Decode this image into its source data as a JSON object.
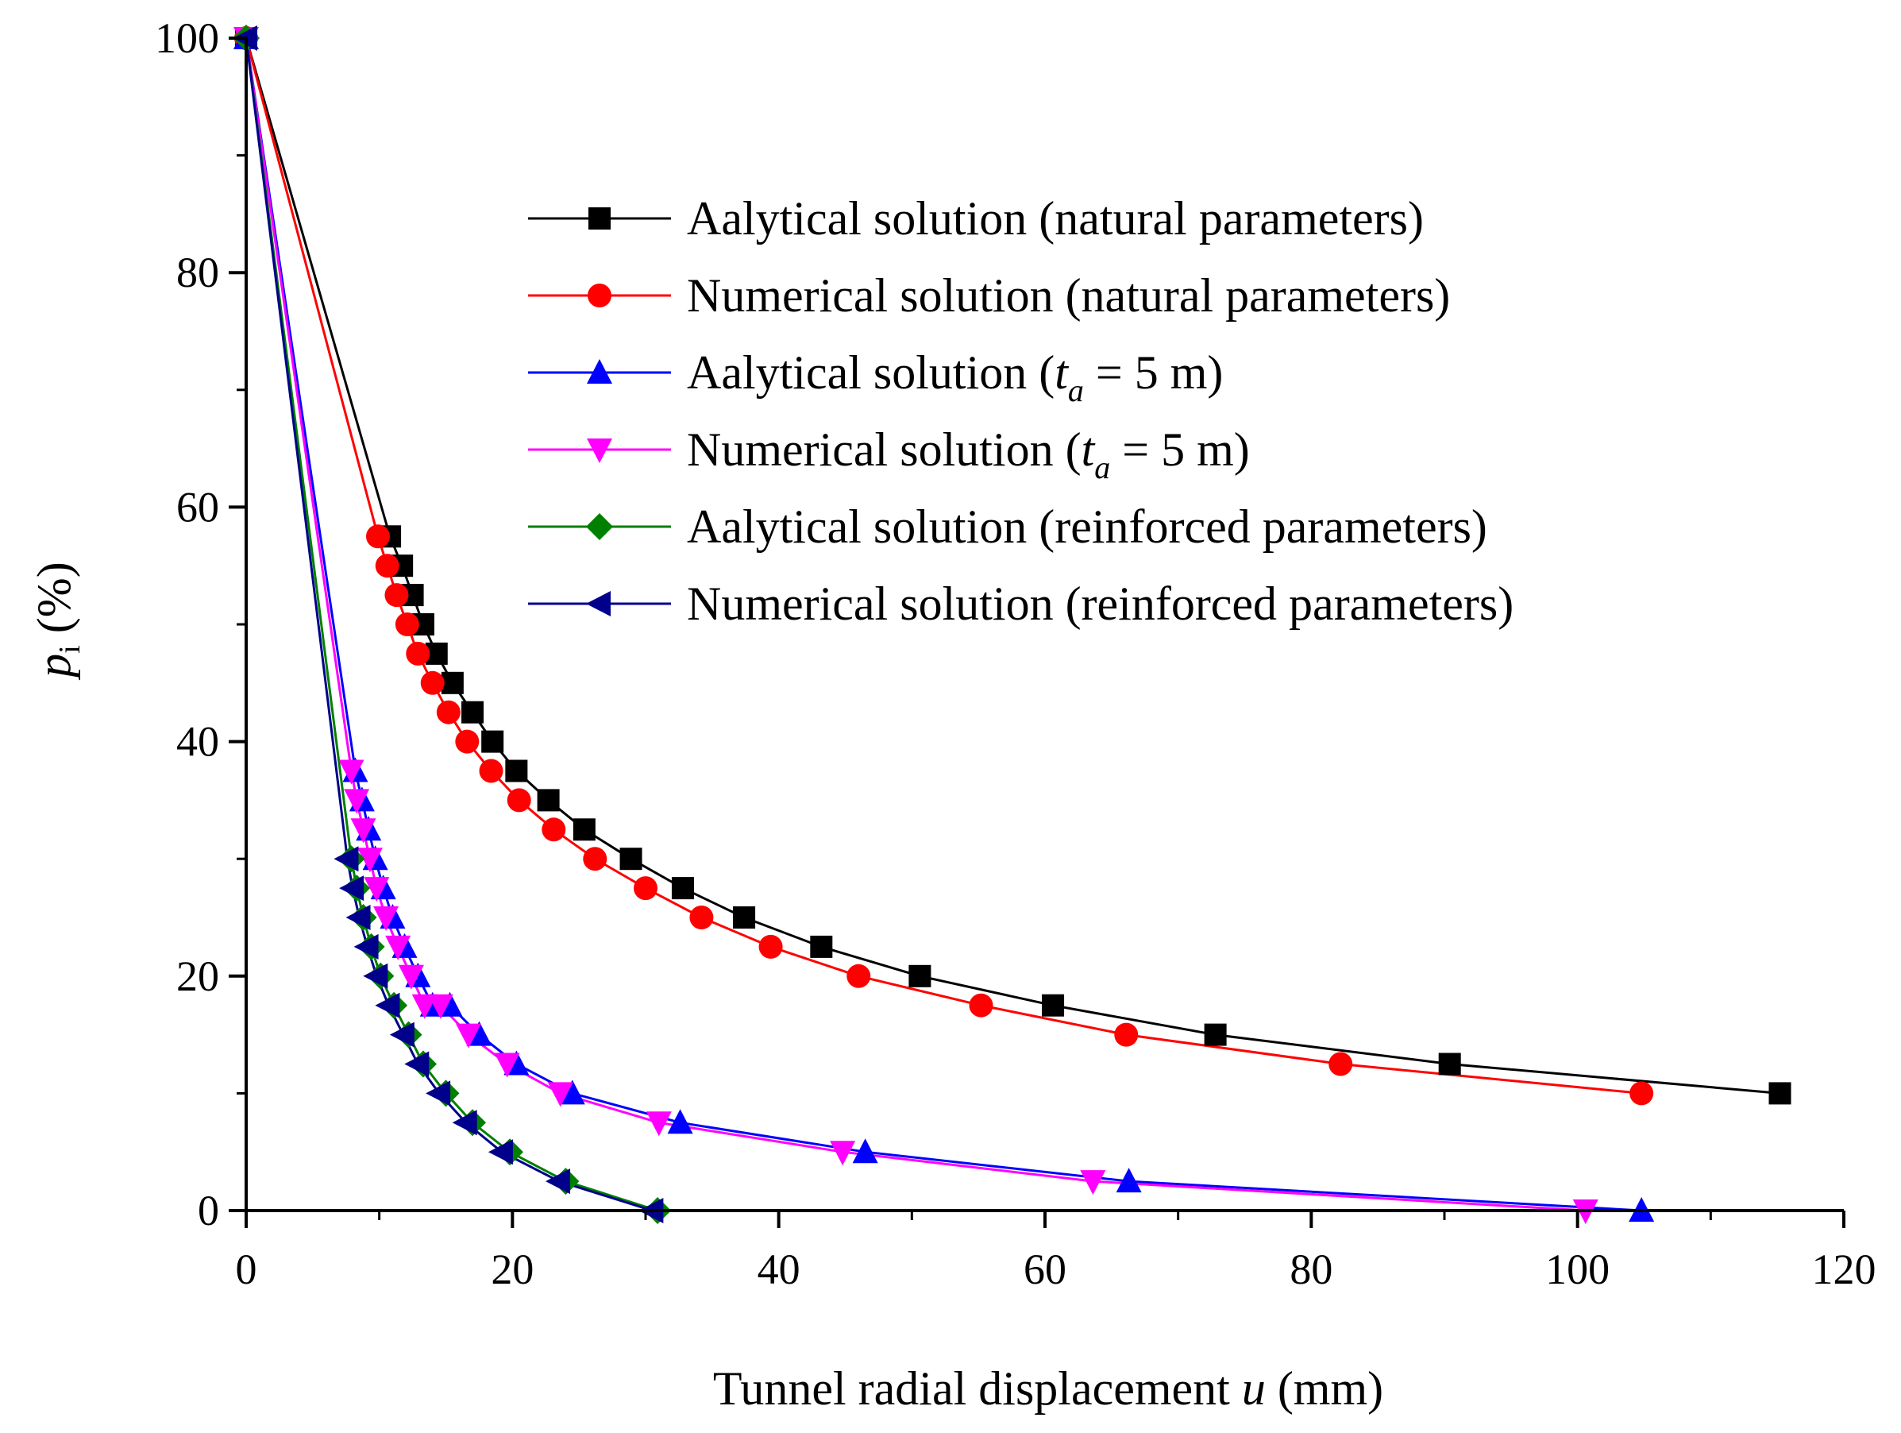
{
  "chart_data": {
    "type": "line",
    "title": "",
    "xlabel": {
      "prefix": "Tunnel radial displacement ",
      "var": "u",
      "suffix": " (mm)"
    },
    "ylabel": {
      "var": "p",
      "sub": "i",
      "suffix": " (%)"
    },
    "xlim": [
      0,
      120
    ],
    "ylim": [
      0,
      100
    ],
    "xticks": [
      0,
      20,
      40,
      60,
      80,
      100,
      120
    ],
    "yticks": [
      0,
      20,
      40,
      60,
      80,
      100
    ],
    "grid": false,
    "legend_position": "top-right",
    "series": [
      {
        "name": "Aalytical solution (natural parameters)",
        "label_parts": {
          "text": "Aalytical solution (natural parameters)"
        },
        "color": "#000000",
        "marker": "square",
        "x": [
          0,
          10.8,
          11.7,
          12.5,
          13.3,
          14.3,
          15.5,
          17.0,
          18.5,
          20.3,
          22.7,
          25.4,
          28.9,
          32.8,
          37.4,
          43.2,
          50.6,
          60.6,
          72.8,
          90.4,
          115.2
        ],
        "y": [
          100,
          57.5,
          55,
          52.5,
          50,
          47.5,
          45,
          42.5,
          40,
          37.5,
          35,
          32.5,
          30,
          27.5,
          25,
          22.5,
          20,
          17.5,
          15,
          12.5,
          10
        ]
      },
      {
        "name": "Numerical solution (natural parameters)",
        "label_parts": {
          "text": "Numerical solution (natural parameters)"
        },
        "color": "#ff0000",
        "marker": "circle",
        "x": [
          0,
          9.9,
          10.6,
          11.3,
          12.1,
          12.9,
          14.0,
          15.2,
          16.6,
          18.4,
          20.5,
          23.1,
          26.2,
          30.0,
          34.2,
          39.4,
          46.0,
          55.2,
          66.1,
          82.2,
          104.8
        ],
        "y": [
          100,
          57.5,
          55,
          52.5,
          50,
          47.5,
          45,
          42.5,
          40,
          37.5,
          35,
          32.5,
          30,
          27.5,
          25,
          22.5,
          20,
          17.5,
          15,
          12.5,
          10
        ]
      },
      {
        "name": "Aalytical solution (t_a = 5 m)",
        "label_parts": {
          "prefix": "Aalytical solution (",
          "var": "t",
          "sub": "a",
          "suffix": " = 5 m)"
        },
        "color": "#0000ff",
        "marker": "triangle-up",
        "x": [
          0,
          8.2,
          8.7,
          9.2,
          9.7,
          10.3,
          11.0,
          11.9,
          12.9,
          14.0,
          15.3,
          17.5,
          20.3,
          24.5,
          32.6,
          46.5,
          66.3,
          104.8
        ],
        "y": [
          100,
          37.5,
          35,
          32.5,
          30,
          27.5,
          25,
          22.5,
          20,
          17.5,
          17.5,
          15,
          12.5,
          10,
          7.5,
          5,
          2.5,
          0
        ]
      },
      {
        "name": "Numerical solution (t_a = 5 m)",
        "label_parts": {
          "prefix": "Numerical solution (",
          "var": "t",
          "sub": "a",
          "suffix": " = 5 m)"
        },
        "color": "#ff00ff",
        "marker": "triangle-down",
        "x": [
          0,
          7.9,
          8.3,
          8.8,
          9.3,
          9.8,
          10.5,
          11.4,
          12.4,
          13.4,
          14.6,
          16.7,
          19.6,
          23.6,
          31.0,
          44.8,
          63.6,
          100.6
        ],
        "y": [
          100,
          37.5,
          35,
          32.5,
          30,
          27.5,
          25,
          22.5,
          20,
          17.5,
          17.5,
          15,
          12.5,
          10,
          7.5,
          5,
          2.5,
          0
        ]
      },
      {
        "name": "Aalytical solution (reinforced parameters)",
        "label_parts": {
          "text": "Aalytical solution (reinforced parameters)"
        },
        "color": "#008000",
        "marker": "diamond",
        "x": [
          0,
          7.9,
          8.3,
          8.8,
          9.4,
          10.1,
          11.1,
          12.2,
          13.3,
          15.0,
          17.0,
          19.8,
          24.0,
          30.9
        ],
        "y": [
          100,
          30,
          27.5,
          25,
          22.5,
          20,
          17.5,
          15,
          12.5,
          10,
          7.5,
          5,
          2.5,
          0
        ]
      },
      {
        "name": "Numerical solution (reinforced parameters)",
        "label_parts": {
          "text": "Numerical solution (reinforced parameters)"
        },
        "color": "#00008b",
        "marker": "triangle-left",
        "x": [
          0,
          7.6,
          8.0,
          8.5,
          9.1,
          9.8,
          10.7,
          11.8,
          12.9,
          14.5,
          16.5,
          19.2,
          23.5,
          30.5
        ],
        "y": [
          100,
          30,
          27.5,
          25,
          22.5,
          20,
          17.5,
          15,
          12.5,
          10,
          7.5,
          5,
          2.5,
          0
        ]
      }
    ]
  }
}
